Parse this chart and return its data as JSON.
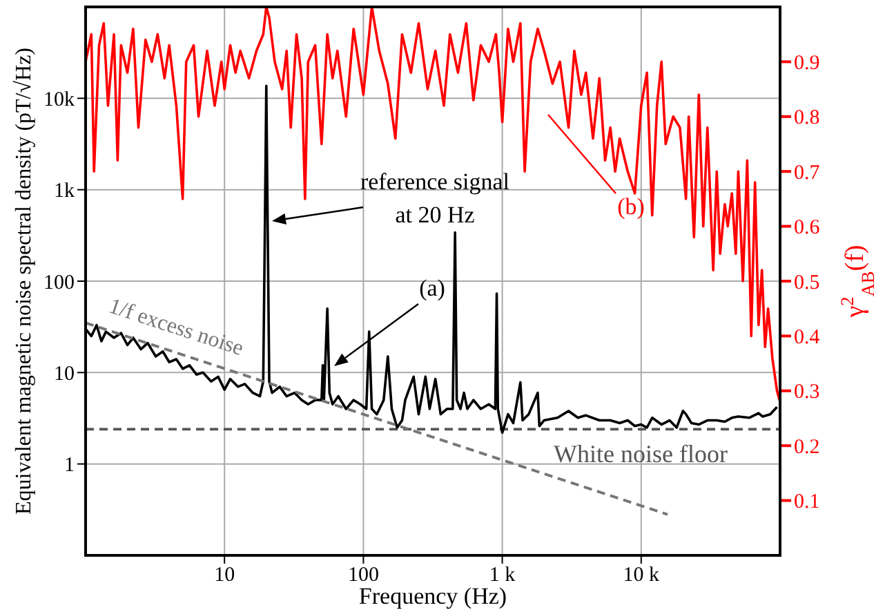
{
  "chart_data": {
    "type": "line",
    "xlabel": "Frequency (Hz)",
    "ylabel": "Equivalent magnetic noise spectral density (pT/√Hz)",
    "y2label": "γ$^{2}$$_{AB}$(f)",
    "log": "xy",
    "grid": true,
    "xlim": [
      1,
      100000
    ],
    "xticks": [
      10,
      100,
      {
        "value": 1000,
        "label": "1 k"
      },
      {
        "value": 10000,
        "label": "10 k"
      }
    ],
    "ylim": [
      0.1,
      100000
    ],
    "yticks": [
      1,
      10,
      100,
      {
        "value": 1000,
        "label": "1k"
      },
      {
        "value": 10000,
        "label": "10k"
      }
    ],
    "y2lim": [
      0,
      1
    ],
    "y2ticks": [
      0.1,
      0.2,
      0.3,
      0.4,
      0.5,
      0.6,
      0.7,
      0.8,
      0.9
    ],
    "series": [
      {
        "color": "#ff0000",
        "axis": "y2",
        "x": [
          1,
          1.1,
          1.15,
          1.25,
          1.35,
          1.45,
          1.6,
          1.7,
          1.8,
          2,
          2.2,
          2.4,
          2.7,
          3,
          3.3,
          3.7,
          4,
          4.5,
          5,
          5.3,
          6,
          6.5,
          7.5,
          8.5,
          9.5,
          10,
          11,
          12,
          13,
          15,
          17,
          19,
          20,
          21,
          23,
          26,
          28,
          30,
          33,
          36,
          38,
          40,
          45,
          50,
          55,
          60,
          65,
          75,
          85,
          100,
          115,
          130,
          150,
          170,
          190,
          220,
          250,
          290,
          330,
          380,
          420,
          480,
          550,
          620,
          700,
          800,
          900,
          950,
          1000,
          1100,
          1200,
          1350,
          1450,
          1600,
          1800,
          2000,
          2300,
          2600,
          3000,
          3300,
          3700,
          4000,
          4500,
          5000,
          5500,
          6000,
          6500,
          7000,
          8000,
          9000,
          10000,
          11000,
          12000,
          13000,
          14000,
          15000,
          17000,
          19000,
          21000,
          22000,
          24000,
          26000,
          28000,
          30000,
          33000,
          35000,
          37000,
          40000,
          42000,
          45000,
          48000,
          50000,
          54000,
          58000,
          62000,
          66000,
          70000,
          74000,
          78000,
          82000,
          88000,
          95000,
          100000
        ],
        "values": [
          0.9,
          0.95,
          0.7,
          0.93,
          0.97,
          0.82,
          0.95,
          0.72,
          0.93,
          0.88,
          0.96,
          0.78,
          0.94,
          0.9,
          0.95,
          0.87,
          0.93,
          0.82,
          0.65,
          0.9,
          0.93,
          0.8,
          0.92,
          0.82,
          0.9,
          0.85,
          0.93,
          0.88,
          0.92,
          0.87,
          0.92,
          0.95,
          1,
          0.98,
          0.9,
          0.85,
          0.92,
          0.78,
          0.95,
          0.87,
          0.65,
          0.9,
          0.93,
          0.75,
          0.95,
          0.87,
          0.92,
          0.8,
          0.96,
          0.84,
          1,
          0.92,
          0.86,
          0.76,
          0.95,
          0.88,
          0.97,
          0.85,
          0.92,
          0.82,
          0.95,
          0.88,
          0.97,
          0.83,
          0.93,
          0.9,
          0.95,
          0.88,
          0.79,
          0.96,
          0.9,
          0.97,
          0.7,
          0.9,
          0.96,
          0.92,
          0.86,
          0.9,
          0.78,
          0.92,
          0.84,
          0.88,
          0.76,
          0.87,
          0.72,
          0.78,
          0.7,
          0.76,
          0.7,
          0.66,
          0.82,
          0.88,
          0.62,
          0.82,
          0.9,
          0.75,
          0.8,
          0.78,
          0.65,
          0.8,
          0.58,
          0.84,
          0.6,
          0.78,
          0.52,
          0.7,
          0.55,
          0.64,
          0.6,
          0.66,
          0.55,
          0.7,
          0.5,
          0.72,
          0.4,
          0.68,
          0.42,
          0.52,
          0.38,
          0.45,
          0.36,
          0.3,
          0.28
        ]
      },
      {
        "color": "#000000",
        "x": [
          1,
          1.1,
          1.2,
          1.3,
          1.4,
          1.6,
          1.8,
          2,
          2.2,
          2.5,
          2.8,
          3.2,
          3.6,
          4,
          4.5,
          5,
          5.6,
          6.3,
          7,
          8,
          9,
          10,
          11,
          12.5,
          14,
          16,
          18,
          19,
          19.5,
          20,
          20.5,
          21,
          22,
          25,
          28,
          32,
          36,
          40,
          45,
          50,
          51,
          52,
          55,
          57,
          60,
          66,
          75,
          85,
          95,
          105,
          110,
          115,
          125,
          140,
          150,
          160,
          175,
          190,
          200,
          230,
          250,
          280,
          300,
          330,
          360,
          400,
          440,
          457,
          470,
          500,
          530,
          560,
          620,
          700,
          800,
          890,
          912,
          930,
          1000,
          1100,
          1200,
          1350,
          1400,
          1550,
          1800,
          1850,
          2000,
          2500,
          3000,
          3500,
          4000,
          5000,
          6000,
          7000,
          8000,
          9000,
          10000,
          11000,
          12000,
          14000,
          16000,
          18000,
          20000,
          21000,
          23000,
          26000,
          30000,
          35000,
          40000,
          45000,
          50000,
          60000,
          70000,
          75000,
          85000,
          95000
        ],
        "values": [
          30,
          25,
          33,
          22,
          28,
          24,
          27,
          20,
          24,
          18,
          21,
          15,
          17,
          13,
          14,
          11,
          12,
          9.5,
          10,
          8,
          9,
          6.5,
          8.5,
          7,
          7.5,
          6,
          5.5,
          8,
          300,
          13700,
          300,
          8,
          6,
          7,
          5.5,
          6,
          5,
          4.5,
          5,
          5,
          12,
          5,
          50,
          6,
          4.5,
          5.5,
          4,
          5,
          4.5,
          4,
          28,
          4,
          3.5,
          5,
          15,
          4,
          2.5,
          3,
          5,
          9,
          3.5,
          9,
          4,
          8.5,
          3.5,
          4,
          4,
          340,
          5,
          4,
          6,
          4,
          5,
          4,
          4.5,
          4,
          73,
          4,
          2.2,
          3.5,
          2.8,
          7.8,
          3,
          3.5,
          6,
          2.6,
          3,
          3.2,
          3.8,
          3.2,
          3.4,
          3,
          3,
          2.8,
          3,
          2.6,
          2.7,
          2.5,
          3.2,
          2.7,
          3,
          2.5,
          3.8,
          3.5,
          2.8,
          2.7,
          3,
          3,
          2.9,
          3.2,
          3.3,
          3.2,
          3.6,
          3.3,
          3.5,
          4.2
        ]
      },
      {
        "name": "1/f excess noise",
        "color": "#777777",
        "line_style": "dashed",
        "x": [
          1,
          15500
        ],
        "values": [
          35,
          0.28
        ]
      }
    ],
    "ref_lines": [
      {
        "axis": "y",
        "value": 2.4,
        "label": "White noise floor",
        "color": "#555555",
        "line_style": "dashed"
      }
    ],
    "annotations": [
      "reference signal\nat 20 Hz",
      "(a)",
      "(b)"
    ]
  }
}
